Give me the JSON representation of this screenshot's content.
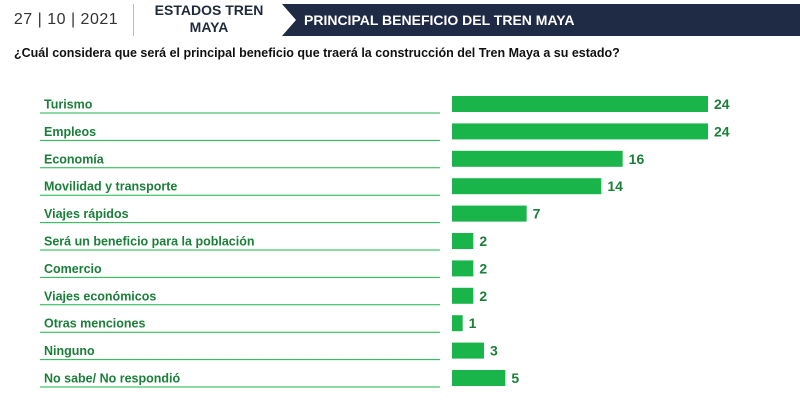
{
  "header": {
    "date": "27 | 10 | 2021",
    "topic": "ESTADOS TREN MAYA",
    "title": "PRINCIPAL BENEFICIO DEL TREN MAYA"
  },
  "question": "¿Cuál considera que será el principal beneficio que traerá la construcción del Tren Maya a su estado?",
  "colors": {
    "bar": "#1ab54a",
    "label": "#1b7f3a",
    "navy": "#1f2a44",
    "line": "#1ab54a"
  },
  "chart_data": {
    "type": "bar",
    "orientation": "horizontal",
    "categories": [
      "Turismo",
      "Empleos",
      "Economía",
      "Movilidad y transporte",
      "Viajes rápidos",
      "Será un beneficio para la población",
      "Comercio",
      "Viajes económicos",
      "Otras menciones",
      "Ninguno",
      "No sabe/ No respondió"
    ],
    "values": [
      24,
      24,
      16,
      14,
      7,
      2,
      2,
      2,
      1,
      3,
      5
    ],
    "title": "",
    "xlabel": "",
    "ylabel": "",
    "grid": false,
    "legend": "none"
  }
}
